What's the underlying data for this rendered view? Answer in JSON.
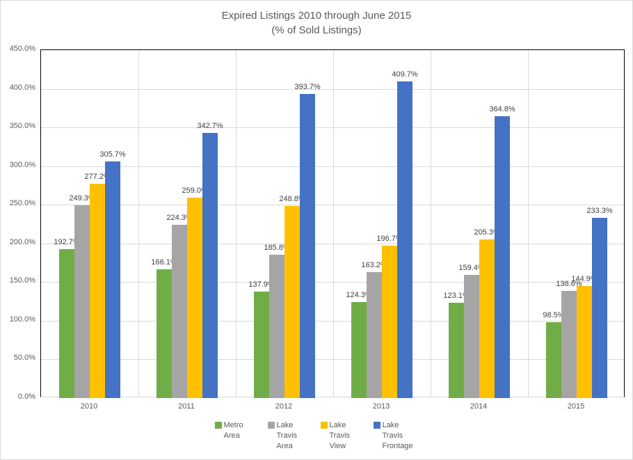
{
  "chart": {
    "title_line1": "Expired Listings 2010 through June 2015",
    "title_line2": "(% of Sold Listings)",
    "chart_data": {
      "type": "bar",
      "title": "Expired Listings 2010 through June 2015 (% of Sold Listings)",
      "categories": [
        "2010",
        "2011",
        "2012",
        "2013",
        "2014",
        "2015"
      ],
      "series": [
        {
          "name": "Metro Area",
          "color": "#70AD47",
          "values": [
            192.7,
            166.1,
            137.9,
            124.3,
            123.1,
            98.5
          ]
        },
        {
          "name": "Lake Travis Area",
          "color": "#A5A5A5",
          "values": [
            249.3,
            224.3,
            185.8,
            163.2,
            159.4,
            138.6
          ]
        },
        {
          "name": "Lake Travis View",
          "color": "#FFC000",
          "values": [
            277.2,
            259.0,
            248.8,
            196.7,
            205.3,
            144.9
          ]
        },
        {
          "name": "Lake Travis Frontage",
          "color": "#4472C4",
          "values": [
            305.7,
            342.7,
            393.7,
            409.7,
            364.8,
            233.3
          ]
        }
      ],
      "xlabel": "",
      "ylabel": "",
      "ylim": [
        0,
        450
      ],
      "ytick_step": 50,
      "ytick_labels": [
        "450.0%",
        "400.0%",
        "350.0%",
        "300.0%",
        "250.0%",
        "200.0%",
        "150.0%",
        "100.0%",
        "50.0%",
        "0.0%"
      ],
      "data_labels": true,
      "data_label_suffix": "%",
      "grid": true,
      "legend_position": "bottom"
    },
    "colors": {
      "title_text": "#595959",
      "axis_text": "#595959",
      "data_label_text": "#404040",
      "gridline": "#D9D9D9",
      "plot_border": "#000000",
      "background": "#FFFFFF"
    }
  }
}
